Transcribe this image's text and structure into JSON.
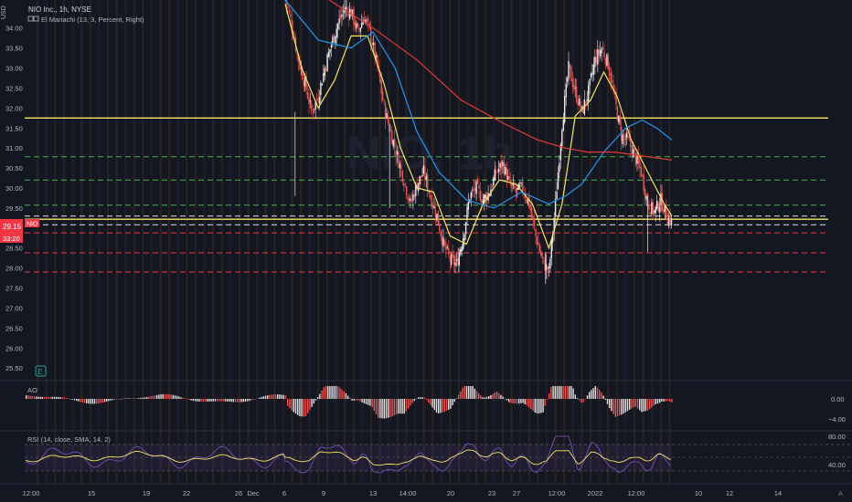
{
  "header": {
    "currency": "USD",
    "symbol_line": "NIO Inc., 1h, NYSE",
    "indicator_line": "El Mariachi (13, 3, Percent, Right)",
    "watermark": "NIO, 1h"
  },
  "colors": {
    "background": "#131722",
    "candle_up": "#e8e8e8",
    "candle_down": "#ef5350",
    "ema_fast": "#f5e663",
    "ema_mid": "#2196f3",
    "ema_slow": "#e53935",
    "support_green": "#4caf50",
    "support_red": "#f23645",
    "resistance_yellow": "#f5e663",
    "rsi_line": "#7e57c2",
    "rsi_ma": "#f5e663",
    "price_tag": "#f23645"
  },
  "price_tag": {
    "price": "29.15",
    "symbol": "NIO",
    "countdown": "33:20"
  },
  "time_axis": {
    "labels": [
      "12:00",
      "15",
      "19",
      "22",
      "26",
      "Dec",
      "6",
      "9",
      "13",
      "14:00",
      "20",
      "23",
      "27",
      "12:00",
      "2022",
      "12:00",
      "10",
      "12",
      "14"
    ],
    "a_label": "A"
  },
  "ao_panel": {
    "label": "AO",
    "ticks": [
      "0.00",
      "−4.00"
    ]
  },
  "rsi_panel": {
    "label": "RSI (14, close, SMA, 14, 2)",
    "ticks": [
      "80.00",
      "40.00"
    ]
  },
  "chart_data": {
    "type": "candlestick",
    "title": "NIO Inc., 1h, NYSE",
    "y_axis": {
      "ticks": [
        34.0,
        33.5,
        33.0,
        32.5,
        32.0,
        31.5,
        31.0,
        30.5,
        30.0,
        29.5,
        29.0,
        28.5,
        28.0,
        27.5,
        27.0,
        26.5,
        26.0,
        25.5
      ],
      "ylim": [
        25.3,
        34.7
      ],
      "position": "right"
    },
    "x_axis": {
      "labels": [
        "12:00",
        "15",
        "19",
        "22",
        "26",
        "Dec",
        "6",
        "9",
        "13",
        "14:00",
        "20",
        "23",
        "27",
        "12:00",
        "2022",
        "12:00",
        "10",
        "12",
        "14"
      ]
    },
    "horizontal_levels": [
      {
        "value": 31.75,
        "style": "solid",
        "color": "#f5e663"
      },
      {
        "value": 30.78,
        "style": "dashed",
        "color": "#4caf50"
      },
      {
        "value": 30.2,
        "style": "dashed",
        "color": "#4caf50"
      },
      {
        "value": 29.57,
        "style": "dashed",
        "color": "#4caf50"
      },
      {
        "value": 29.3,
        "style": "dashed",
        "color": "#e0e0e0"
      },
      {
        "value": 29.22,
        "style": "solid",
        "color": "#f5e663"
      },
      {
        "value": 29.08,
        "style": "dashed",
        "color": "#e0e0e0"
      },
      {
        "value": 28.88,
        "style": "dashed",
        "color": "#f23645"
      },
      {
        "value": 28.38,
        "style": "dashed",
        "color": "#f23645"
      },
      {
        "value": 27.9,
        "style": "dashed",
        "color": "#f23645"
      }
    ],
    "close_path": [
      [
        0,
        34.7
      ],
      [
        5,
        34.2
      ],
      [
        12,
        33.2
      ],
      [
        18,
        32.6
      ],
      [
        24,
        31.9
      ],
      [
        30,
        32.3
      ],
      [
        36,
        33.0
      ],
      [
        42,
        33.6
      ],
      [
        48,
        34.1
      ],
      [
        54,
        34.5
      ],
      [
        60,
        34.4
      ],
      [
        66,
        33.9
      ],
      [
        72,
        34.3
      ],
      [
        78,
        33.8
      ],
      [
        84,
        33.0
      ],
      [
        90,
        32.0
      ],
      [
        96,
        31.4
      ],
      [
        102,
        30.8
      ],
      [
        108,
        30.2
      ],
      [
        114,
        29.6
      ],
      [
        120,
        30.1
      ],
      [
        126,
        30.4
      ],
      [
        132,
        29.8
      ],
      [
        138,
        29.3
      ],
      [
        144,
        28.6
      ],
      [
        150,
        28.2
      ],
      [
        156,
        28.1
      ],
      [
        162,
        28.8
      ],
      [
        168,
        29.8
      ],
      [
        174,
        30.0
      ],
      [
        180,
        29.7
      ],
      [
        186,
        29.9
      ],
      [
        192,
        30.4
      ],
      [
        198,
        30.6
      ],
      [
        204,
        30.1
      ],
      [
        210,
        29.9
      ],
      [
        216,
        30.0
      ],
      [
        222,
        29.6
      ],
      [
        228,
        28.8
      ],
      [
        234,
        28.2
      ],
      [
        240,
        27.9
      ],
      [
        246,
        29.6
      ],
      [
        252,
        31.6
      ],
      [
        258,
        33.0
      ],
      [
        264,
        32.4
      ],
      [
        270,
        31.9
      ],
      [
        276,
        32.4
      ],
      [
        282,
        33.2
      ],
      [
        288,
        33.5
      ],
      [
        294,
        33.1
      ],
      [
        300,
        32.2
      ],
      [
        306,
        31.3
      ],
      [
        312,
        31.2
      ],
      [
        318,
        30.8
      ],
      [
        324,
        30.4
      ],
      [
        330,
        29.6
      ],
      [
        336,
        29.4
      ],
      [
        342,
        29.7
      ],
      [
        347,
        29.3
      ],
      [
        352,
        29.15
      ]
    ],
    "series": [
      {
        "name": "ema_fast",
        "values": [
          [
            0,
            34.6
          ],
          [
            15,
            33.0
          ],
          [
            30,
            32.0
          ],
          [
            45,
            32.7
          ],
          [
            60,
            33.8
          ],
          [
            75,
            33.8
          ],
          [
            90,
            32.6
          ],
          [
            105,
            31.0
          ],
          [
            120,
            30.0
          ],
          [
            135,
            29.9
          ],
          [
            150,
            28.8
          ],
          [
            165,
            28.6
          ],
          [
            180,
            29.6
          ],
          [
            195,
            30.2
          ],
          [
            210,
            30.1
          ],
          [
            225,
            29.6
          ],
          [
            240,
            28.5
          ],
          [
            252,
            29.6
          ],
          [
            264,
            31.8
          ],
          [
            278,
            32.2
          ],
          [
            290,
            32.9
          ],
          [
            302,
            32.3
          ],
          [
            315,
            31.2
          ],
          [
            330,
            30.4
          ],
          [
            345,
            29.6
          ],
          [
            352,
            29.3
          ]
        ]
      },
      {
        "name": "ema_mid",
        "values": [
          [
            0,
            34.7
          ],
          [
            30,
            33.7
          ],
          [
            60,
            33.5
          ],
          [
            80,
            33.9
          ],
          [
            100,
            33.0
          ],
          [
            120,
            31.4
          ],
          [
            140,
            30.4
          ],
          [
            165,
            29.7
          ],
          [
            190,
            29.5
          ],
          [
            215,
            29.9
          ],
          [
            240,
            29.6
          ],
          [
            255,
            29.8
          ],
          [
            270,
            30.1
          ],
          [
            290,
            30.9
          ],
          [
            310,
            31.5
          ],
          [
            325,
            31.7
          ],
          [
            338,
            31.5
          ],
          [
            352,
            31.2
          ]
        ]
      },
      {
        "name": "ema_slow",
        "values": [
          [
            40,
            34.7
          ],
          [
            80,
            34.0
          ],
          [
            120,
            33.2
          ],
          [
            160,
            32.2
          ],
          [
            200,
            31.6
          ],
          [
            230,
            31.2
          ],
          [
            255,
            31.0
          ],
          [
            275,
            30.9
          ],
          [
            300,
            30.9
          ],
          [
            325,
            30.8
          ],
          [
            352,
            30.7
          ]
        ]
      }
    ]
  }
}
